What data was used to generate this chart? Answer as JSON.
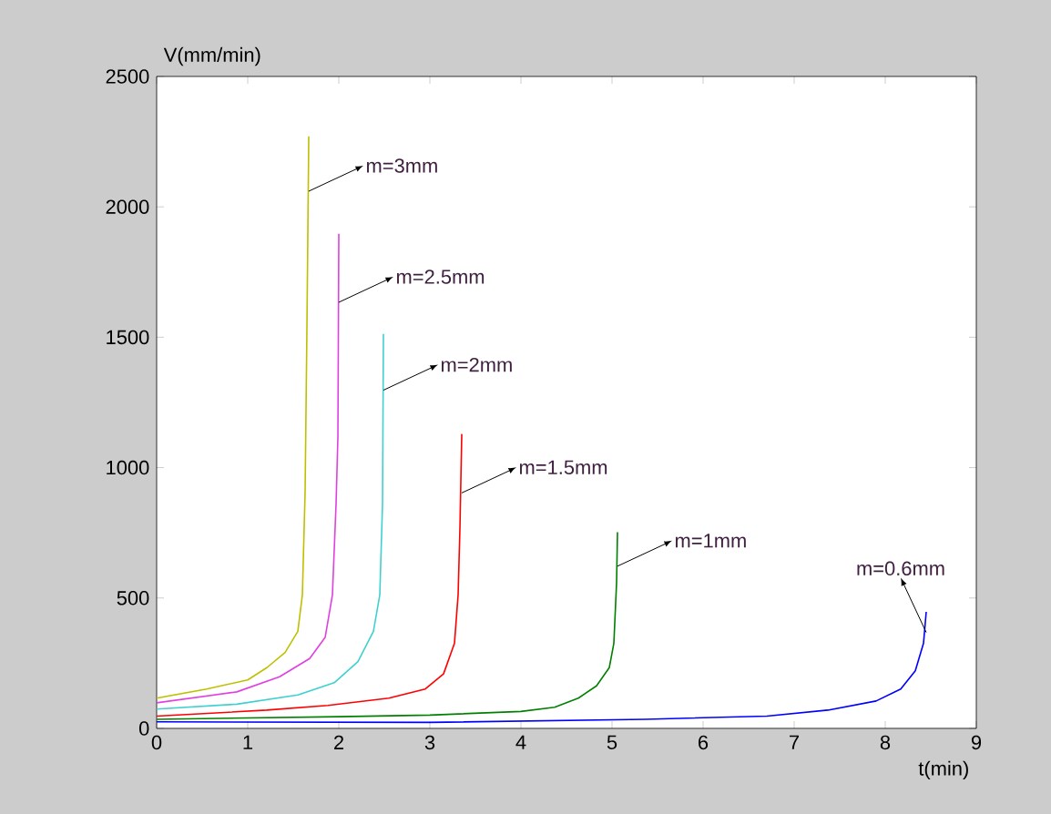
{
  "chart_data": {
    "type": "line",
    "xlabel": "t(min)",
    "ylabel": "V(mm/min)",
    "xlim": [
      0,
      9
    ],
    "ylim": [
      0,
      2500
    ],
    "xticks": [
      0,
      1,
      2,
      3,
      4,
      5,
      6,
      7,
      8,
      9
    ],
    "yticks": [
      0,
      500,
      1000,
      1500,
      2000,
      2500
    ],
    "grid": false,
    "marker": "none",
    "line_style": "solid",
    "series": [
      {
        "color": "#bfbf00",
        "x": [
          0,
          0.55,
          1,
          1.21,
          1.41,
          1.55,
          1.6,
          1.63,
          1.65,
          1.67
        ],
        "values": [
          116,
          151,
          186,
          233,
          291,
          372,
          512,
          908,
          1536,
          2270
        ]
      },
      {
        "color": "#e040e0",
        "x": [
          0,
          0.88,
          1.35,
          1.68,
          1.85,
          1.93,
          1.97,
          1.99,
          2.0
        ],
        "values": [
          98,
          140,
          198,
          268,
          349,
          512,
          861,
          1117,
          1897
        ]
      },
      {
        "color": "#40d0d0",
        "x": [
          0,
          0.88,
          1.55,
          1.95,
          2.21,
          2.38,
          2.45,
          2.48,
          2.49
        ],
        "values": [
          74,
          93,
          128,
          175,
          256,
          372,
          512,
          861,
          1513
        ]
      },
      {
        "color": "#ff0000",
        "x": [
          0,
          1.21,
          1.88,
          2.55,
          2.95,
          3.15,
          3.27,
          3.31,
          3.33,
          3.35
        ],
        "values": [
          47,
          70,
          88,
          116,
          151,
          209,
          326,
          512,
          768,
          1129
        ]
      },
      {
        "color": "#008000",
        "x": [
          0,
          2,
          3,
          4,
          4.37,
          4.63,
          4.83,
          4.97,
          5.02,
          5.05,
          5.06
        ],
        "values": [
          35,
          45,
          51,
          65,
          81,
          116,
          163,
          233,
          326,
          559,
          752
        ]
      },
      {
        "color": "#0000ff",
        "x": [
          0,
          3,
          5.37,
          6.7,
          7.37,
          7.9,
          8.17,
          8.33,
          8.42,
          8.45
        ],
        "values": [
          25,
          23,
          35,
          47,
          70,
          105,
          151,
          221,
          326,
          447
        ]
      }
    ],
    "annotations": [
      {
        "text": "m=3mm",
        "x": 1.67,
        "y": 2060
      },
      {
        "text": "m=2.5mm",
        "x": 2.0,
        "y": 1634
      },
      {
        "text": "m=2mm",
        "x": 2.49,
        "y": 1297
      },
      {
        "text": "m=1.5mm",
        "x": 3.35,
        "y": 903
      },
      {
        "text": "m=1mm",
        "x": 5.06,
        "y": 622
      },
      {
        "text": "m=0.6mm",
        "x": 8.45,
        "y": 368
      }
    ]
  }
}
